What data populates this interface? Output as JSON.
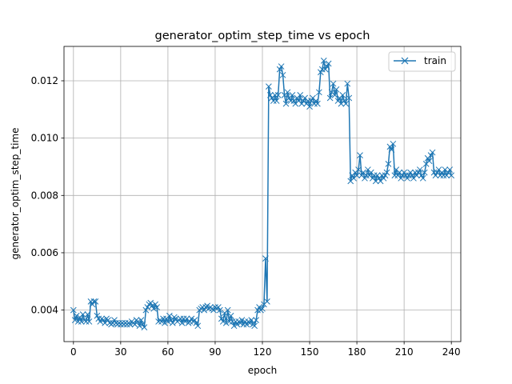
{
  "chart_data": {
    "type": "line",
    "title": "generator_optim_step_time vs epoch",
    "xlabel": "epoch",
    "ylabel": "generator_optim_step_time",
    "xlim": [
      -6,
      246
    ],
    "ylim": [
      0.0029,
      0.0132
    ],
    "xticks": [
      0,
      30,
      60,
      90,
      120,
      150,
      180,
      210,
      240
    ],
    "yticks": [
      0.004,
      0.006,
      0.008,
      0.01,
      0.012
    ],
    "ytick_labels": [
      "0.004",
      "0.006",
      "0.008",
      "0.010",
      "0.012"
    ],
    "grid": true,
    "legend_position": "top-right",
    "marker": "x",
    "color": "#1f77b4",
    "series": [
      {
        "name": "train",
        "x": [
          0,
          1,
          2,
          3,
          4,
          5,
          6,
          7,
          8,
          9,
          10,
          11,
          12,
          13,
          14,
          15,
          16,
          17,
          18,
          19,
          20,
          21,
          22,
          23,
          24,
          25,
          26,
          27,
          28,
          29,
          30,
          31,
          32,
          33,
          34,
          35,
          36,
          37,
          38,
          39,
          40,
          41,
          42,
          43,
          44,
          45,
          46,
          47,
          48,
          49,
          50,
          51,
          52,
          53,
          54,
          55,
          56,
          57,
          58,
          59,
          60,
          61,
          62,
          63,
          64,
          65,
          66,
          67,
          68,
          69,
          70,
          71,
          72,
          73,
          74,
          75,
          76,
          77,
          78,
          79,
          80,
          81,
          82,
          83,
          84,
          85,
          86,
          87,
          88,
          89,
          90,
          91,
          92,
          93,
          94,
          95,
          96,
          97,
          98,
          99,
          100,
          101,
          102,
          103,
          104,
          105,
          106,
          107,
          108,
          109,
          110,
          111,
          112,
          113,
          114,
          115,
          116,
          117,
          118,
          119,
          120,
          121,
          122,
          123,
          124,
          125,
          126,
          127,
          128,
          129,
          130,
          131,
          132,
          133,
          134,
          135,
          136,
          137,
          138,
          139,
          140,
          141,
          142,
          143,
          144,
          145,
          146,
          147,
          148,
          149,
          150,
          151,
          152,
          153,
          154,
          155,
          156,
          157,
          158,
          159,
          160,
          161,
          162,
          163,
          164,
          165,
          166,
          167,
          168,
          169,
          170,
          171,
          172,
          173,
          174,
          175,
          176,
          177,
          178,
          179,
          180,
          181,
          182,
          183,
          184,
          185,
          186,
          187,
          188,
          189,
          190,
          191,
          192,
          193,
          194,
          195,
          196,
          197,
          198,
          199,
          200,
          201,
          202,
          203,
          204,
          205,
          206,
          207,
          208,
          209,
          210,
          211,
          212,
          213,
          214,
          215,
          216,
          217,
          218,
          219,
          220,
          221,
          222,
          223,
          224,
          225,
          226,
          227,
          228,
          229,
          230,
          231,
          232,
          233,
          234,
          235,
          236,
          237,
          238,
          239,
          240
        ],
        "y": [
          0.004,
          0.00365,
          0.0038,
          0.0036,
          0.00375,
          0.0036,
          0.00385,
          0.00365,
          0.0036,
          0.00385,
          0.0036,
          0.0043,
          0.0042,
          0.0043,
          0.0043,
          0.0038,
          0.0037,
          0.0036,
          0.0037,
          0.00365,
          0.00355,
          0.0037,
          0.00365,
          0.00355,
          0.0035,
          0.00355,
          0.00365,
          0.00355,
          0.0035,
          0.00355,
          0.0035,
          0.00355,
          0.0035,
          0.00355,
          0.0035,
          0.00355,
          0.0035,
          0.0036,
          0.00355,
          0.0035,
          0.00365,
          0.0036,
          0.00345,
          0.00365,
          0.0035,
          0.0034,
          0.004,
          0.0041,
          0.0042,
          0.00425,
          0.00415,
          0.00405,
          0.0042,
          0.0041,
          0.0036,
          0.00365,
          0.0036,
          0.0037,
          0.00355,
          0.0037,
          0.0036,
          0.0038,
          0.00365,
          0.00355,
          0.00375,
          0.0037,
          0.0036,
          0.00365,
          0.0037,
          0.00355,
          0.0037,
          0.0036,
          0.0037,
          0.00355,
          0.0036,
          0.0037,
          0.0036,
          0.00365,
          0.00355,
          0.00345,
          0.004,
          0.00405,
          0.0041,
          0.004,
          0.0041,
          0.00415,
          0.00405,
          0.0041,
          0.00405,
          0.004,
          0.0041,
          0.00405,
          0.0041,
          0.004,
          0.0037,
          0.0036,
          0.0039,
          0.00355,
          0.004,
          0.0036,
          0.0038,
          0.0036,
          0.00345,
          0.0036,
          0.0035,
          0.0036,
          0.00355,
          0.00365,
          0.0035,
          0.0036,
          0.0035,
          0.0036,
          0.00355,
          0.00365,
          0.0035,
          0.00345,
          0.00365,
          0.004,
          0.0041,
          0.004,
          0.00405,
          0.0042,
          0.0058,
          0.0043,
          0.0118,
          0.0115,
          0.0114,
          0.0113,
          0.0115,
          0.0113,
          0.0115,
          0.0124,
          0.0125,
          0.0122,
          0.0115,
          0.0112,
          0.0116,
          0.0114,
          0.0113,
          0.0115,
          0.0113,
          0.0112,
          0.0114,
          0.0113,
          0.0115,
          0.0112,
          0.0113,
          0.0114,
          0.0112,
          0.0113,
          0.0111,
          0.0113,
          0.0114,
          0.0112,
          0.0113,
          0.0112,
          0.0116,
          0.0123,
          0.0124,
          0.0127,
          0.0124,
          0.0125,
          0.0126,
          0.0114,
          0.0116,
          0.0119,
          0.0115,
          0.0117,
          0.0113,
          0.0114,
          0.0112,
          0.0115,
          0.0113,
          0.0112,
          0.0119,
          0.0114,
          0.0085,
          0.0087,
          0.0086,
          0.0088,
          0.0087,
          0.0089,
          0.0094,
          0.0087,
          0.0088,
          0.0086,
          0.0087,
          0.0089,
          0.0087,
          0.0088,
          0.0086,
          0.0087,
          0.0085,
          0.0087,
          0.0086,
          0.0085,
          0.0087,
          0.0086,
          0.0087,
          0.0088,
          0.0091,
          0.0097,
          0.0096,
          0.0098,
          0.0087,
          0.0089,
          0.0087,
          0.0088,
          0.0086,
          0.0087,
          0.0088,
          0.0087,
          0.0086,
          0.0087,
          0.0088,
          0.0087,
          0.0086,
          0.0088,
          0.0087,
          0.0088,
          0.0089,
          0.0087,
          0.0086,
          0.0088,
          0.0091,
          0.0093,
          0.0092,
          0.0094,
          0.0095,
          0.0088,
          0.0087,
          0.0088,
          0.0089,
          0.0087,
          0.0088,
          0.0087,
          0.0089,
          0.0087,
          0.0088,
          0.0089,
          0.0087
        ]
      }
    ]
  }
}
